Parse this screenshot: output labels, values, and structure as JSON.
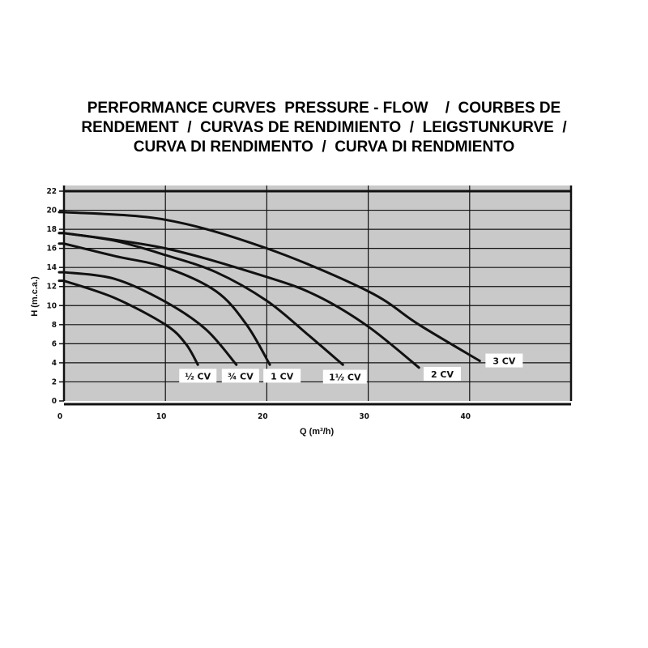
{
  "chart_data": {
    "type": "line",
    "title_lines": [
      "PERFORMANCE CURVES  PRESSURE - FLOW    /  COURBES DE",
      "RENDEMENT  /  CURVAS DE RENDIMIENTO  /  LEIGSTUNKURVE  /",
      "CURVA DI RENDIMENTO  /  CURVA DI RENDMIENTO"
    ],
    "xlabel": "Q (m³/h)",
    "ylabel": "H (m.c.a.)",
    "xlim": [
      0,
      50
    ],
    "ylim": [
      0,
      22
    ],
    "xticks": [
      "0",
      "10",
      "20",
      "30",
      "40"
    ],
    "yticks": [
      "0",
      "2",
      "4",
      "6",
      "8",
      "10",
      "12",
      "14",
      "16",
      "18",
      "20",
      "22"
    ],
    "grid": true,
    "background": "#c9c9c9",
    "line_color": "#111111",
    "series": [
      {
        "name": "½ CV",
        "points": [
          [
            0,
            12.6
          ],
          [
            5,
            10.8
          ],
          [
            10,
            8.0
          ],
          [
            12,
            6.0
          ],
          [
            13.2,
            3.8
          ]
        ],
        "label_at": [
          13.2,
          2.6
        ]
      },
      {
        "name": "¾ CV",
        "points": [
          [
            0,
            13.5
          ],
          [
            5,
            12.8
          ],
          [
            10,
            10.4
          ],
          [
            14,
            7.5
          ],
          [
            17,
            3.8
          ]
        ],
        "label_at": [
          17.4,
          2.6
        ]
      },
      {
        "name": "1 CV",
        "points": [
          [
            0,
            16.5
          ],
          [
            5,
            15.2
          ],
          [
            10,
            14.0
          ],
          [
            15,
            11.5
          ],
          [
            18,
            8.0
          ],
          [
            20.3,
            3.8
          ]
        ],
        "label_at": [
          21.5,
          2.6
        ]
      },
      {
        "name": "1½ CV",
        "points": [
          [
            0,
            17.6
          ],
          [
            5,
            16.8
          ],
          [
            10,
            15.3
          ],
          [
            15,
            13.5
          ],
          [
            20,
            10.5
          ],
          [
            24,
            7.0
          ],
          [
            27.5,
            3.8
          ]
        ],
        "label_at": [
          27.7,
          2.5
        ]
      },
      {
        "name": "2 CV",
        "points": [
          [
            0,
            17.6
          ],
          [
            10,
            16.0
          ],
          [
            20,
            13.0
          ],
          [
            25,
            11.0
          ],
          [
            30,
            7.8
          ],
          [
            35,
            3.5
          ]
        ],
        "label_at": [
          37.3,
          2.8
        ]
      },
      {
        "name": "3 CV",
        "points": [
          [
            0,
            19.8
          ],
          [
            10,
            19.0
          ],
          [
            20,
            16.0
          ],
          [
            30,
            11.5
          ],
          [
            35,
            8.0
          ],
          [
            41,
            4.2
          ]
        ],
        "label_at": [
          43.4,
          4.2
        ]
      }
    ]
  }
}
